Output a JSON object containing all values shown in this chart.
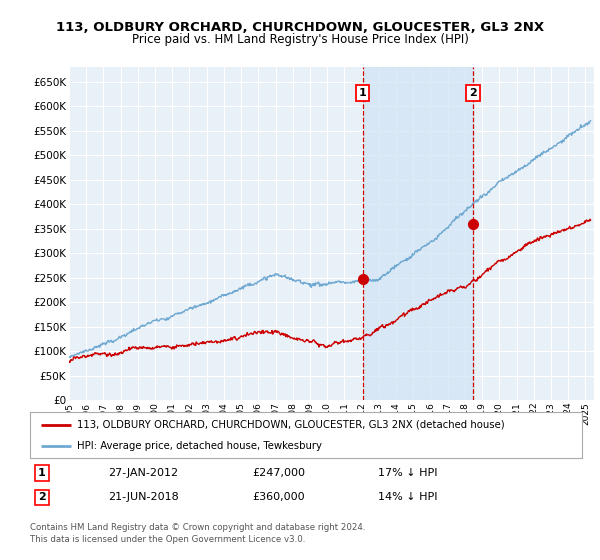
{
  "title": "113, OLDBURY ORCHARD, CHURCHDOWN, GLOUCESTER, GL3 2NX",
  "subtitle": "Price paid vs. HM Land Registry's House Price Index (HPI)",
  "ylabel_values": [
    0,
    50000,
    100000,
    150000,
    200000,
    250000,
    300000,
    350000,
    400000,
    450000,
    500000,
    550000,
    600000,
    650000
  ],
  "ylim": [
    0,
    680000
  ],
  "xlim_start": 1995.0,
  "xlim_end": 2025.5,
  "hpi_color": "#6fa8d0",
  "hpi_fill_color": "#d0e4f4",
  "price_color": "#cc0000",
  "background_color": "#e8f0f8",
  "grid_color": "#ffffff",
  "marker1_x": 2012.07,
  "marker1_y": 247000,
  "marker1_label": "1",
  "marker1_date": "27-JAN-2012",
  "marker1_price": "£247,000",
  "marker1_note": "17% ↓ HPI",
  "marker2_x": 2018.47,
  "marker2_y": 360000,
  "marker2_label": "2",
  "marker2_date": "21-JUN-2018",
  "marker2_price": "£360,000",
  "marker2_note": "14% ↓ HPI",
  "legend_line1": "113, OLDBURY ORCHARD, CHURCHDOWN, GLOUCESTER, GL3 2NX (detached house)",
  "legend_line2": "HPI: Average price, detached house, Tewkesbury",
  "footer1": "Contains HM Land Registry data © Crown copyright and database right 2024.",
  "footer2": "This data is licensed under the Open Government Licence v3.0."
}
